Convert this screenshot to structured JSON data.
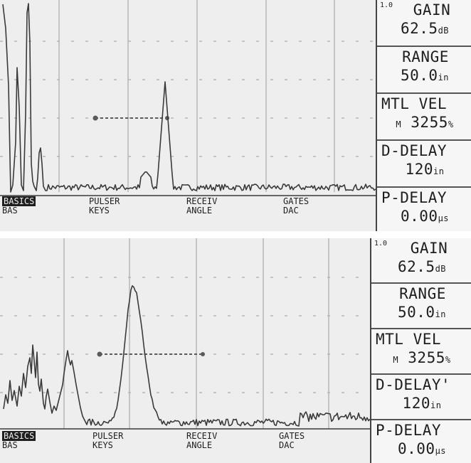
{
  "screens": [
    {
      "id": "top",
      "gain": {
        "prefix": "1.0",
        "label": "GAIN",
        "value": "62.5",
        "unit": "dB"
      },
      "range": {
        "label": "RANGE",
        "value": "50.0",
        "unit": "in"
      },
      "mtl_vel": {
        "label": "MTL VEL",
        "prefix": "M",
        "value": "3255",
        "unit": "%"
      },
      "d_delay": {
        "label": "D-DELAY",
        "value": "120",
        "unit": "in"
      },
      "p_delay": {
        "label": "P-DELAY",
        "value": "0.00",
        "unit": "μs"
      },
      "menu": [
        {
          "top": "BASICS",
          "bottom": "BAS",
          "active": true
        },
        {
          "top": "PULSER",
          "bottom": "KEYS",
          "active": false
        },
        {
          "top": "RECEIV",
          "bottom": "ANGLE",
          "active": false
        },
        {
          "top": "GATES",
          "bottom": "DAC",
          "active": false
        }
      ]
    },
    {
      "id": "bottom",
      "gain": {
        "prefix": "1.0",
        "label": "GAIN",
        "value": "62.5",
        "unit": "dB"
      },
      "range": {
        "label": "RANGE",
        "value": "50.0",
        "unit": "in"
      },
      "mtl_vel": {
        "label": "MTL VEL",
        "prefix": "M",
        "value": "3255",
        "unit": "%"
      },
      "d_delay": {
        "label": "D-DELAY'",
        "value": "120",
        "unit": "in"
      },
      "p_delay": {
        "label": "P-DELAY",
        "value": "0.00",
        "unit": "μs"
      },
      "menu": [
        {
          "top": "BASICS",
          "bottom": "BAS",
          "active": true
        },
        {
          "top": "PULSER",
          "bottom": "KEYS",
          "active": false
        },
        {
          "top": "RECEIV",
          "bottom": "ANGLE",
          "active": false
        },
        {
          "top": "GATES",
          "bottom": "DAC",
          "active": false
        }
      ]
    }
  ],
  "colors": {
    "screen": "#eeeeee",
    "trace": "#3a3a3a",
    "grid": "#b5b5b5",
    "gate": "#5a5a5a",
    "text": "#1e1e1e"
  }
}
